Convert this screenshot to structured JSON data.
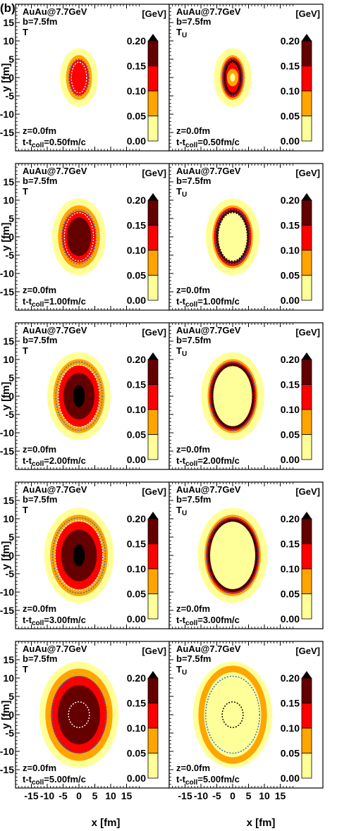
{
  "figure": {
    "label": "(b)",
    "xlabel": "x [fm]",
    "ylabel": "y [fm]",
    "colorbar_unit": "[GeV]",
    "x_ticks": [
      "-15",
      "-10",
      "-5",
      "0",
      "5",
      "10",
      "15"
    ],
    "y_ticks": [
      "15",
      "10",
      "5",
      "0",
      "-5",
      "-10",
      "-15"
    ],
    "colorbar_ticks": [
      "0.20",
      "0.15",
      "0.10",
      "0.05",
      "0.00"
    ]
  },
  "colors": {
    "c0": "#ffff99",
    "c1": "#ffa500",
    "c2": "#ff0000",
    "c3": "#640000",
    "contour_inner": "#000000",
    "contour_outer": "#1f6fd0"
  },
  "chart_data": {
    "type": "heatmap",
    "x_range": [
      -20,
      20
    ],
    "y_range": [
      -20,
      20
    ],
    "color_range_GeV": [
      0.0,
      0.2
    ],
    "color_levels_GeV": [
      0.0,
      0.05,
      0.1,
      0.15,
      0.2
    ],
    "colorbar_extend": "max",
    "system": "AuAu@7.7GeV",
    "impact": "b=7.5fm",
    "z": "z=0.0fm",
    "columns": [
      "T",
      "TU"
    ],
    "rows": [
      {
        "time": "t-tcoll=0.50fm/c",
        "T_max_level": 2,
        "TU_max_level": 3
      },
      {
        "time": "t-tcoll=1.00fm/c",
        "T_max_level": 3,
        "TU_max_level": 3
      },
      {
        "time": "t-tcoll=2.00fm/c",
        "T_max_level": 3,
        "TU_max_level": 3
      },
      {
        "time": "t-tcoll=3.00fm/c",
        "T_max_level": 3,
        "TU_max_level": 3
      },
      {
        "time": "t-tcoll=5.00fm/c",
        "T_max_level": 3,
        "TU_max_level": 1
      }
    ]
  }
}
